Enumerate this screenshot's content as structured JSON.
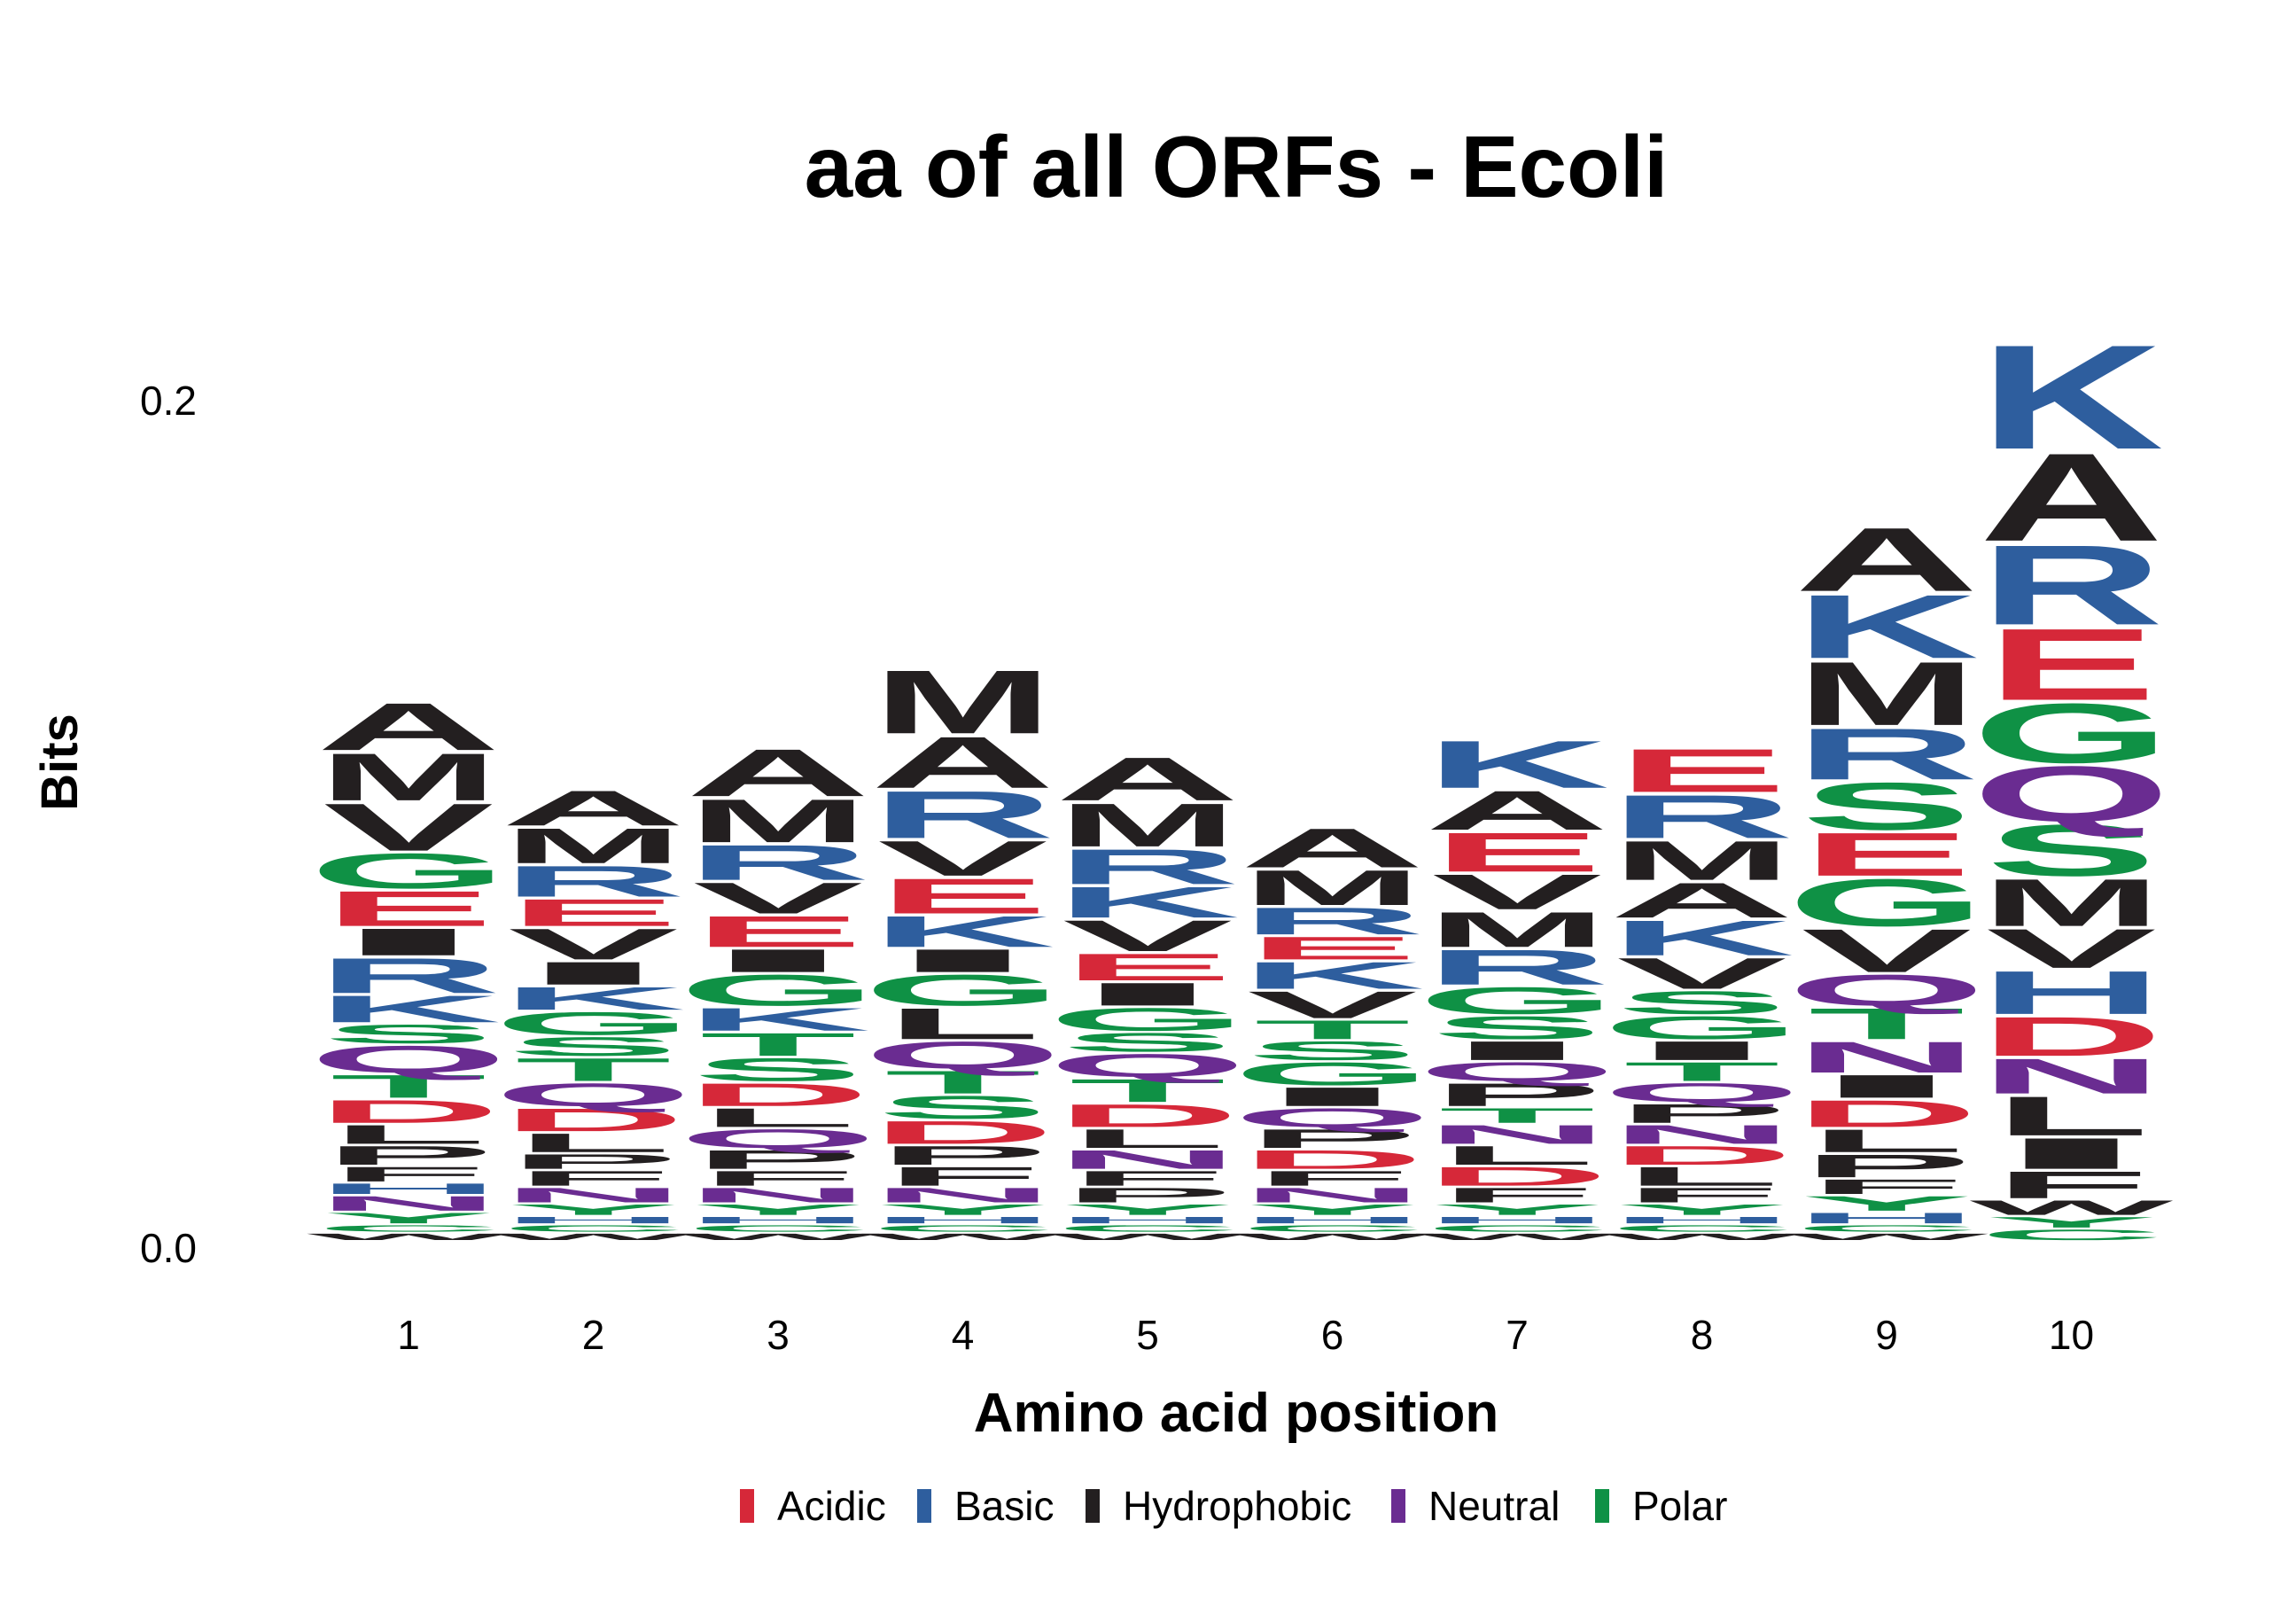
{
  "title": "aa of all ORFs - Ecoli",
  "chart_data": {
    "type": "sequence-logo",
    "title": "aa of all ORFs - Ecoli",
    "xlabel": "Amino acid position",
    "ylabel": "Bits",
    "ylim": [
      0,
      0.2
    ],
    "yticks": [
      "0.0",
      "0.2"
    ],
    "positions": [
      "1",
      "2",
      "3",
      "4",
      "5",
      "6",
      "7",
      "8",
      "9",
      "10"
    ],
    "legend": [
      {
        "name": "Acidic",
        "color": "#d62839"
      },
      {
        "name": "Basic",
        "color": "#2e5e9e"
      },
      {
        "name": "Hydrophobic",
        "color": "#231f20"
      },
      {
        "name": "Neutral",
        "color": "#6a2c91"
      },
      {
        "name": "Polar",
        "color": "#0f9145"
      }
    ],
    "group_of_letter": {
      "D": "Acidic",
      "E": "Acidic",
      "K": "Basic",
      "R": "Basic",
      "H": "Basic",
      "A": "Hydrophobic",
      "V": "Hydrophobic",
      "L": "Hydrophobic",
      "I": "Hydrophobic",
      "P": "Hydrophobic",
      "W": "Hydrophobic",
      "F": "Hydrophobic",
      "M": "Hydrophobic",
      "Q": "Neutral",
      "N": "Neutral",
      "G": "Polar",
      "S": "Polar",
      "T": "Polar",
      "Y": "Polar",
      "C": "Polar"
    },
    "stacks": [
      [
        [
          "W",
          0.002
        ],
        [
          "C",
          0.002
        ],
        [
          "Y",
          0.003
        ],
        [
          "N",
          0.004
        ],
        [
          "H",
          0.003
        ],
        [
          "F",
          0.004
        ],
        [
          "P",
          0.005
        ],
        [
          "L",
          0.005
        ],
        [
          "D",
          0.006
        ],
        [
          "T",
          0.006
        ],
        [
          "Q",
          0.007
        ],
        [
          "S",
          0.005
        ],
        [
          "K",
          0.007
        ],
        [
          "R",
          0.009
        ],
        [
          "I",
          0.007
        ],
        [
          "E",
          0.009
        ],
        [
          "G",
          0.009
        ],
        [
          "V",
          0.012
        ],
        [
          "M",
          0.012
        ],
        [
          "A",
          0.012
        ]
      ],
      [
        [
          "W",
          0.002
        ],
        [
          "C",
          0.002
        ],
        [
          "H",
          0.002
        ],
        [
          "Y",
          0.003
        ],
        [
          "N",
          0.004
        ],
        [
          "F",
          0.004
        ],
        [
          "P",
          0.004
        ],
        [
          "L",
          0.005
        ],
        [
          "D",
          0.006
        ],
        [
          "Q",
          0.006
        ],
        [
          "T",
          0.006
        ],
        [
          "S",
          0.005
        ],
        [
          "G",
          0.006
        ],
        [
          "K",
          0.006
        ],
        [
          "I",
          0.006
        ],
        [
          "V",
          0.008
        ],
        [
          "E",
          0.007
        ],
        [
          "R",
          0.008
        ],
        [
          "M",
          0.009
        ],
        [
          "A",
          0.009
        ]
      ],
      [
        [
          "W",
          0.002
        ],
        [
          "C",
          0.002
        ],
        [
          "H",
          0.002
        ],
        [
          "Y",
          0.003
        ],
        [
          "N",
          0.004
        ],
        [
          "F",
          0.004
        ],
        [
          "P",
          0.005
        ],
        [
          "Q",
          0.005
        ],
        [
          "L",
          0.005
        ],
        [
          "D",
          0.006
        ],
        [
          "S",
          0.006
        ],
        [
          "T",
          0.006
        ],
        [
          "K",
          0.006
        ],
        [
          "G",
          0.008
        ],
        [
          "I",
          0.006
        ],
        [
          "E",
          0.008
        ],
        [
          "V",
          0.008
        ],
        [
          "R",
          0.009
        ],
        [
          "M",
          0.011
        ],
        [
          "A",
          0.012
        ]
      ],
      [
        [
          "W",
          0.002
        ],
        [
          "C",
          0.002
        ],
        [
          "H",
          0.002
        ],
        [
          "Y",
          0.003
        ],
        [
          "N",
          0.004
        ],
        [
          "F",
          0.005
        ],
        [
          "P",
          0.005
        ],
        [
          "D",
          0.006
        ],
        [
          "S",
          0.006
        ],
        [
          "T",
          0.006
        ],
        [
          "Q",
          0.007
        ],
        [
          "L",
          0.008
        ],
        [
          "G",
          0.008
        ],
        [
          "I",
          0.006
        ],
        [
          "K",
          0.008
        ],
        [
          "E",
          0.009
        ],
        [
          "V",
          0.009
        ],
        [
          "R",
          0.012
        ],
        [
          "A",
          0.013
        ],
        [
          "M",
          0.016
        ]
      ],
      [
        [
          "W",
          0.002
        ],
        [
          "C",
          0.002
        ],
        [
          "H",
          0.002
        ],
        [
          "Y",
          0.003
        ],
        [
          "P",
          0.004
        ],
        [
          "F",
          0.004
        ],
        [
          "N",
          0.005
        ],
        [
          "L",
          0.005
        ],
        [
          "D",
          0.006
        ],
        [
          "T",
          0.006
        ],
        [
          "Q",
          0.006
        ],
        [
          "S",
          0.005
        ],
        [
          "G",
          0.006
        ],
        [
          "I",
          0.006
        ],
        [
          "E",
          0.007
        ],
        [
          "V",
          0.008
        ],
        [
          "K",
          0.008
        ],
        [
          "R",
          0.009
        ],
        [
          "M",
          0.011
        ],
        [
          "A",
          0.011
        ]
      ],
      [
        [
          "W",
          0.002
        ],
        [
          "C",
          0.002
        ],
        [
          "H",
          0.002
        ],
        [
          "Y",
          0.003
        ],
        [
          "N",
          0.004
        ],
        [
          "F",
          0.004
        ],
        [
          "D",
          0.005
        ],
        [
          "P",
          0.005
        ],
        [
          "Q",
          0.005
        ],
        [
          "I",
          0.005
        ],
        [
          "G",
          0.006
        ],
        [
          "S",
          0.005
        ],
        [
          "T",
          0.005
        ],
        [
          "V",
          0.007
        ],
        [
          "K",
          0.007
        ],
        [
          "E",
          0.006
        ],
        [
          "R",
          0.007
        ],
        [
          "M",
          0.009
        ],
        [
          "A",
          0.01
        ]
      ],
      [
        [
          "W",
          0.002
        ],
        [
          "C",
          0.002
        ],
        [
          "H",
          0.002
        ],
        [
          "Y",
          0.003
        ],
        [
          "F",
          0.004
        ],
        [
          "D",
          0.005
        ],
        [
          "L",
          0.005
        ],
        [
          "N",
          0.005
        ],
        [
          "T",
          0.004
        ],
        [
          "P",
          0.006
        ],
        [
          "Q",
          0.005
        ],
        [
          "I",
          0.005
        ],
        [
          "S",
          0.006
        ],
        [
          "G",
          0.007
        ],
        [
          "R",
          0.009
        ],
        [
          "M",
          0.009
        ],
        [
          "V",
          0.009
        ],
        [
          "E",
          0.01
        ],
        [
          "A",
          0.01
        ],
        [
          "K",
          0.012
        ]
      ],
      [
        [
          "W",
          0.002
        ],
        [
          "C",
          0.002
        ],
        [
          "H",
          0.002
        ],
        [
          "Y",
          0.003
        ],
        [
          "F",
          0.004
        ],
        [
          "L",
          0.005
        ],
        [
          "D",
          0.005
        ],
        [
          "N",
          0.005
        ],
        [
          "P",
          0.005
        ],
        [
          "Q",
          0.005
        ],
        [
          "T",
          0.005
        ],
        [
          "I",
          0.005
        ],
        [
          "G",
          0.006
        ],
        [
          "S",
          0.006
        ],
        [
          "V",
          0.008
        ],
        [
          "K",
          0.009
        ],
        [
          "A",
          0.009
        ],
        [
          "M",
          0.01
        ],
        [
          "R",
          0.011
        ],
        [
          "E",
          0.011
        ]
      ],
      [
        [
          "W",
          0.002
        ],
        [
          "C",
          0.002
        ],
        [
          "H",
          0.003
        ],
        [
          "Y",
          0.004
        ],
        [
          "F",
          0.004
        ],
        [
          "P",
          0.006
        ],
        [
          "L",
          0.006
        ],
        [
          "D",
          0.007
        ],
        [
          "I",
          0.006
        ],
        [
          "N",
          0.008
        ],
        [
          "T",
          0.008
        ],
        [
          "Q",
          0.008
        ],
        [
          "V",
          0.011
        ],
        [
          "G",
          0.012
        ],
        [
          "E",
          0.011
        ],
        [
          "S",
          0.012
        ],
        [
          "R",
          0.013
        ],
        [
          "M",
          0.016
        ],
        [
          "K",
          0.016
        ],
        [
          "A",
          0.016
        ]
      ],
      [
        [
          "C",
          0.003
        ],
        [
          "Y",
          0.003
        ],
        [
          "W",
          0.004
        ],
        [
          "F",
          0.007
        ],
        [
          "I",
          0.008
        ],
        [
          "L",
          0.01
        ],
        [
          "N",
          0.009
        ],
        [
          "D",
          0.01
        ],
        [
          "H",
          0.011
        ],
        [
          "V",
          0.01
        ],
        [
          "M",
          0.012
        ],
        [
          "S",
          0.013
        ],
        [
          "Q",
          0.014
        ],
        [
          "G",
          0.015
        ],
        [
          "E",
          0.018
        ],
        [
          "R",
          0.02
        ],
        [
          "A",
          0.022
        ],
        [
          "K",
          0.026
        ]
      ]
    ]
  }
}
